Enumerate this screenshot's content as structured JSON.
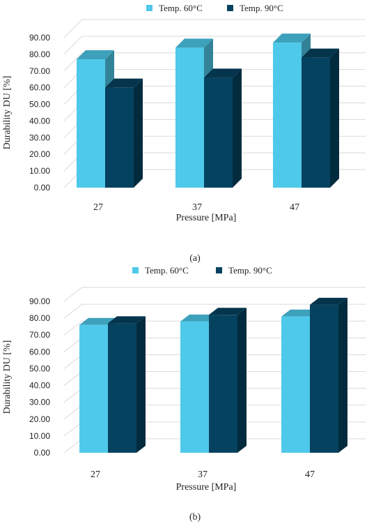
{
  "chart_data": [
    {
      "type": "bar",
      "categories": [
        "27",
        "37",
        "47"
      ],
      "series": [
        {
          "name": "Temp. 60°C",
          "values": [
            77,
            84,
            87
          ],
          "color": "#4ec9ea"
        },
        {
          "name": "Temp. 90°C",
          "values": [
            60,
            66,
            78
          ],
          "color": "#05425f"
        }
      ],
      "xlabel": "Pressure [MPa]",
      "ylabel": "Durability DU [%]",
      "ylim": [
        0,
        90
      ],
      "yticks": [
        "0.00",
        "10.00",
        "20.00",
        "30.00",
        "40.00",
        "50.00",
        "60.00",
        "70.00",
        "80.00",
        "90.00"
      ],
      "grid": true,
      "legend": "top",
      "panel_label": "(a)"
    },
    {
      "type": "bar",
      "categories": [
        "27",
        "37",
        "47"
      ],
      "series": [
        {
          "name": "Temp. 60°C",
          "values": [
            76,
            78,
            81
          ],
          "color": "#4ec9ea"
        },
        {
          "name": "Temp. 90°C",
          "values": [
            77,
            82,
            88
          ],
          "color": "#05425f"
        }
      ],
      "xlabel": "Pressure [MPa]",
      "ylabel": "Durability DU [%]",
      "ylim": [
        0,
        90
      ],
      "yticks": [
        "0.00",
        "10.00",
        "20.00",
        "30.00",
        "40.00",
        "50.00",
        "60.00",
        "70.00",
        "80.00",
        "90.00"
      ],
      "grid": true,
      "legend": "top",
      "panel_label": "(b)"
    }
  ]
}
